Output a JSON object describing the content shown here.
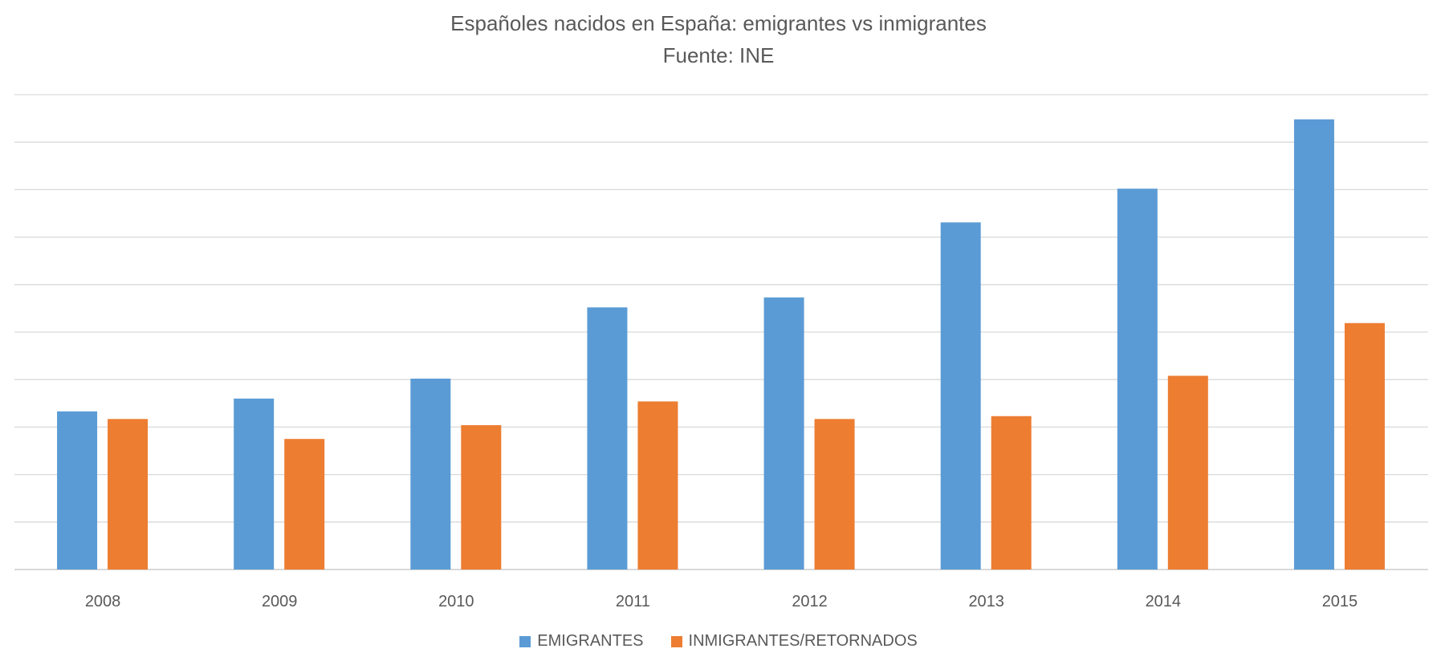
{
  "chart_data": {
    "type": "bar",
    "title": "Españoles nacidos en España: emigrantes vs inmigrantes",
    "subtitle": "Fuente: INE",
    "xlabel": "",
    "ylabel": "",
    "categories": [
      "2008",
      "2009",
      "2010",
      "2011",
      "2012",
      "2013",
      "2014",
      "2015"
    ],
    "series": [
      {
        "name": "EMIGRANTES",
        "color": "#5B9BD5",
        "values": [
          3.33,
          3.6,
          4.02,
          5.52,
          5.73,
          7.31,
          8.02,
          9.48
        ]
      },
      {
        "name": "INMIGRANTES/RETORNADOS",
        "color": "#ED7D31",
        "values": [
          3.17,
          2.75,
          3.04,
          3.54,
          3.17,
          3.23,
          4.08,
          5.19
        ]
      }
    ],
    "ylim": [
      0,
      10
    ],
    "y_tick_labels_shown": false,
    "grid": true,
    "legend": "bottom"
  }
}
